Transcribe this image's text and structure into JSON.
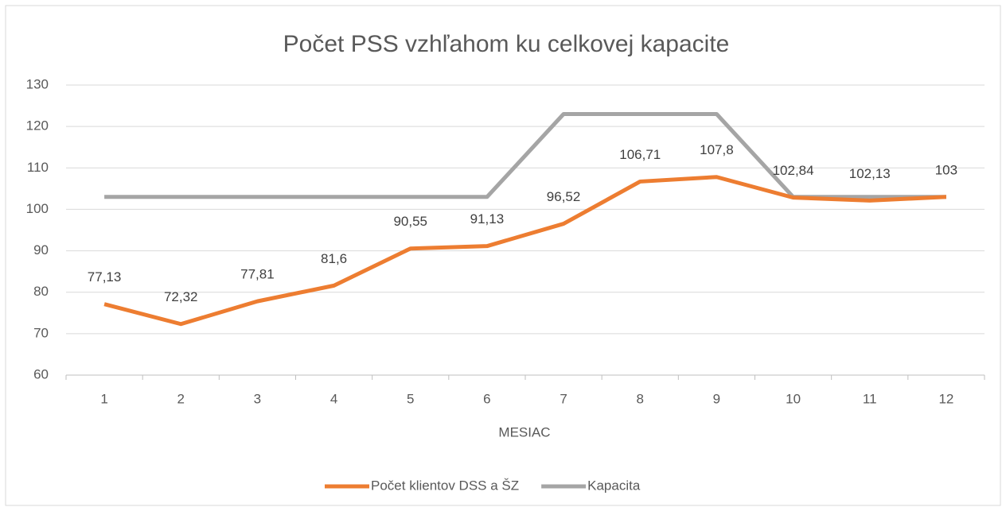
{
  "chart_data": {
    "type": "line",
    "title": "Počet PSS vzhľahom ku celkovej kapacite",
    "x_label": "MESIAC",
    "categories": [
      "1",
      "2",
      "3",
      "4",
      "5",
      "6",
      "7",
      "8",
      "9",
      "10",
      "11",
      "12"
    ],
    "series": [
      {
        "name": "Počet klientov DSS a ŠZ",
        "color": "#ed7d31",
        "values": [
          77.13,
          72.32,
          77.81,
          81.6,
          90.55,
          91.13,
          96.52,
          106.71,
          107.8,
          102.84,
          102.13,
          103
        ],
        "value_labels": [
          "77,13",
          "72,32",
          "77,81",
          "81,6",
          "90,55",
          "91,13",
          "96,52",
          "106,71",
          "107,8",
          "102,84",
          "102,13",
          "103"
        ]
      },
      {
        "name": "Kapacita",
        "color": "#a5a5a5",
        "values": [
          103,
          103,
          103,
          103,
          103,
          103,
          123,
          123,
          123,
          103,
          103,
          103
        ]
      }
    ],
    "ylim": [
      60,
      130
    ],
    "yticks": [
      60,
      70,
      80,
      90,
      100,
      110,
      120,
      130
    ],
    "grid": true,
    "legend": "bottom"
  }
}
